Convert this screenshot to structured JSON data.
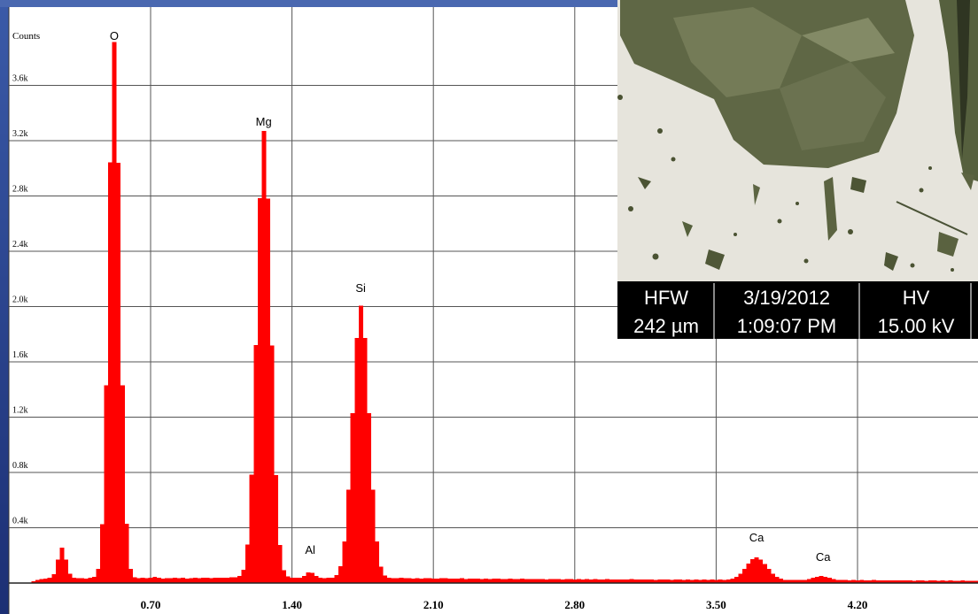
{
  "chart_data": {
    "type": "spectrum",
    "y_label": "Counts",
    "color": "#ff0000",
    "xlim": [
      0,
      4.8
    ],
    "ylim": [
      0,
      4000
    ],
    "xticks": [
      {
        "value": 0.7,
        "label": "0.70"
      },
      {
        "value": 1.4,
        "label": "1.40"
      },
      {
        "value": 2.1,
        "label": "2.10"
      },
      {
        "value": 2.8,
        "label": "2.80"
      },
      {
        "value": 3.5,
        "label": "3.50"
      },
      {
        "value": 4.2,
        "label": "4.20"
      }
    ],
    "yticks": [
      {
        "value": 400,
        "label": "0.4k"
      },
      {
        "value": 800,
        "label": "0.8k"
      },
      {
        "value": 1200,
        "label": "1.2k"
      },
      {
        "value": 1600,
        "label": "1.6k"
      },
      {
        "value": 2000,
        "label": "2.0k"
      },
      {
        "value": 2400,
        "label": "2.4k"
      },
      {
        "value": 2800,
        "label": "2.8k"
      },
      {
        "value": 3200,
        "label": "3.2k"
      },
      {
        "value": 3600,
        "label": "3.6k"
      }
    ],
    "grid": true,
    "annotations": [
      {
        "text": "O",
        "x": 0.52,
        "y": 3930
      },
      {
        "text": "Mg",
        "x": 1.26,
        "y": 3309
      },
      {
        "text": "Si",
        "x": 1.74,
        "y": 2106
      },
      {
        "text": "Al",
        "x": 1.49,
        "y": 211
      },
      {
        "text": "Ca",
        "x": 3.7,
        "y": 301
      },
      {
        "text": "Ca",
        "x": 4.03,
        "y": 160
      }
    ],
    "x": [
      0.1,
      0.12,
      0.14,
      0.16,
      0.18,
      0.2,
      0.22,
      0.24,
      0.26,
      0.28,
      0.3,
      0.32,
      0.34,
      0.36,
      0.38,
      0.4,
      0.42,
      0.44,
      0.46,
      0.48,
      0.5,
      0.52,
      0.54,
      0.56,
      0.58,
      0.6,
      0.62,
      0.64,
      0.66,
      0.68,
      0.7,
      0.72,
      0.74,
      0.76,
      0.78,
      0.8,
      0.82,
      0.84,
      0.86,
      0.88,
      0.9,
      0.92,
      0.94,
      0.96,
      0.98,
      1.0,
      1.02,
      1.04,
      1.06,
      1.08,
      1.1,
      1.12,
      1.14,
      1.16,
      1.18,
      1.2,
      1.22,
      1.24,
      1.26,
      1.28,
      1.3,
      1.32,
      1.34,
      1.36,
      1.38,
      1.4,
      1.42,
      1.44,
      1.46,
      1.48,
      1.5,
      1.52,
      1.54,
      1.56,
      1.58,
      1.6,
      1.62,
      1.64,
      1.66,
      1.68,
      1.7,
      1.72,
      1.74,
      1.76,
      1.78,
      1.8,
      1.82,
      1.84,
      1.86,
      1.88,
      1.9,
      1.92,
      1.94,
      1.96,
      1.98,
      2.0,
      2.02,
      2.04,
      2.06,
      2.08,
      2.1,
      2.12,
      2.14,
      2.16,
      2.18,
      2.2,
      2.22,
      2.24,
      2.26,
      2.28,
      2.3,
      2.32,
      2.34,
      2.36,
      2.38,
      2.4,
      2.42,
      2.44,
      2.46,
      2.48,
      2.5,
      2.52,
      2.54,
      2.56,
      2.58,
      2.6,
      2.62,
      2.64,
      2.66,
      2.68,
      2.7,
      2.72,
      2.74,
      2.76,
      2.78,
      2.8,
      2.82,
      2.84,
      2.86,
      2.88,
      2.9,
      2.92,
      2.94,
      2.96,
      2.98,
      3.0,
      3.02,
      3.04,
      3.06,
      3.08,
      3.1,
      3.12,
      3.14,
      3.16,
      3.18,
      3.2,
      3.22,
      3.24,
      3.26,
      3.28,
      3.3,
      3.32,
      3.34,
      3.36,
      3.38,
      3.4,
      3.42,
      3.44,
      3.46,
      3.48,
      3.5,
      3.52,
      3.54,
      3.56,
      3.58,
      3.6,
      3.62,
      3.64,
      3.66,
      3.68,
      3.7,
      3.72,
      3.74,
      3.76,
      3.78,
      3.8,
      3.82,
      3.84,
      3.86,
      3.88,
      3.9,
      3.92,
      3.94,
      3.96,
      3.98,
      4.0,
      4.02,
      4.04,
      4.06,
      4.08,
      4.1,
      4.12,
      4.14,
      4.16,
      4.18,
      4.2,
      4.22,
      4.24,
      4.26,
      4.28,
      4.3,
      4.32,
      4.34,
      4.36,
      4.38,
      4.4,
      4.42,
      4.44,
      4.46,
      4.48,
      4.5,
      4.52,
      4.54,
      4.56,
      4.58,
      4.6,
      4.62,
      4.64,
      4.66,
      4.68,
      4.7,
      4.72,
      4.74,
      4.76,
      4.78,
      4.8
    ],
    "values": [
      4,
      12,
      22,
      30,
      33,
      38,
      65,
      169,
      255,
      170,
      66,
      38,
      34,
      36,
      33,
      37,
      44,
      101,
      426,
      1432,
      3042,
      3915,
      3040,
      1430,
      428,
      102,
      43,
      36,
      40,
      34,
      37,
      45,
      38,
      33,
      36,
      34,
      38,
      35,
      37,
      33,
      36,
      38,
      35,
      37,
      39,
      36,
      38,
      40,
      37,
      39,
      42,
      41,
      50,
      97,
      280,
      785,
      1722,
      2783,
      3270,
      2782,
      1720,
      782,
      276,
      93,
      48,
      38,
      37,
      39,
      52,
      78,
      75,
      50,
      38,
      36,
      37,
      38,
      57,
      122,
      302,
      675,
      1230,
      1774,
      2005,
      1772,
      1228,
      674,
      300,
      120,
      56,
      38,
      36,
      35,
      37,
      34,
      36,
      33,
      35,
      32,
      34,
      36,
      33,
      31,
      34,
      35,
      32,
      33,
      31,
      34,
      30,
      32,
      33,
      31,
      29,
      32,
      30,
      31,
      33,
      30,
      29,
      31,
      30,
      28,
      31,
      29,
      30,
      28,
      30,
      29,
      27,
      30,
      28,
      29,
      27,
      28,
      30,
      27,
      28,
      26,
      28,
      27,
      29,
      26,
      27,
      28,
      26,
      27,
      25,
      27,
      26,
      28,
      25,
      26,
      27,
      25,
      26,
      24,
      26,
      25,
      27,
      24,
      25,
      26,
      24,
      25,
      23,
      25,
      24,
      26,
      24,
      25,
      23,
      25,
      24,
      26,
      33,
      46,
      68,
      102,
      140,
      172,
      185,
      171,
      139,
      101,
      67,
      45,
      32,
      24,
      23,
      24,
      22,
      23,
      21,
      30,
      40,
      46,
      52,
      45,
      39,
      30,
      22,
      21,
      22,
      20,
      21,
      19,
      21,
      20,
      19,
      21,
      19,
      20,
      18,
      20,
      19,
      18,
      20,
      18,
      19,
      17,
      19,
      18,
      17,
      19,
      18,
      17,
      18,
      16,
      18,
      17,
      16,
      18,
      17,
      16,
      17,
      16
    ]
  },
  "image_info": {
    "headers": [
      "HFW",
      "3/19/2012",
      "HV"
    ],
    "values": [
      "242 µm",
      "1:09:07 PM",
      "15.00 kV"
    ]
  }
}
